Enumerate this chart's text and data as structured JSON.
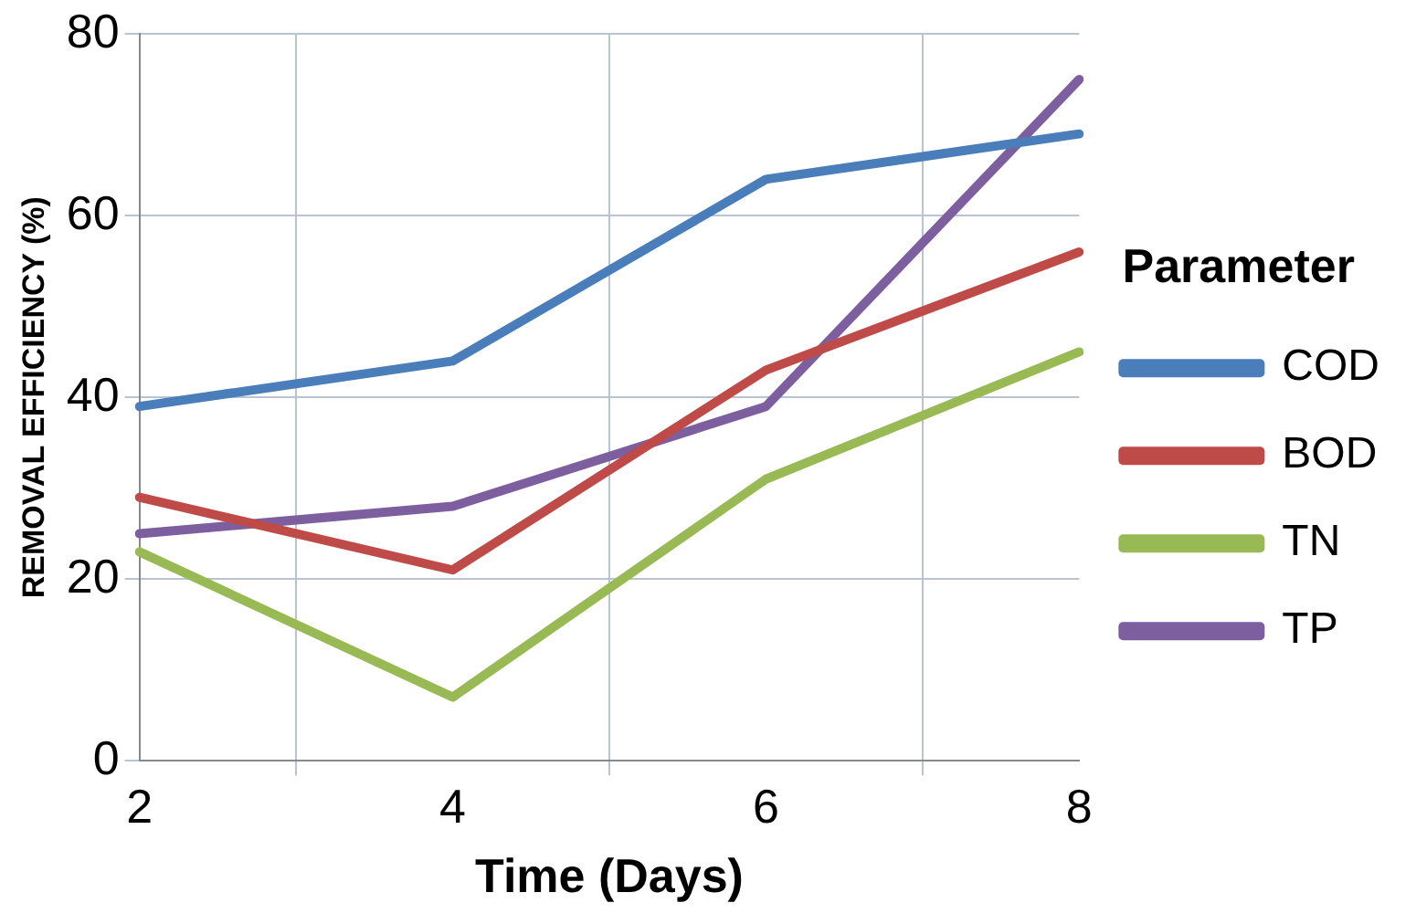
{
  "chart_data": {
    "type": "line",
    "xlabel": "Time (Days)",
    "ylabel": "REMOVAL EFFICIENCY (%)",
    "legend_title": "Parameter",
    "categories": [
      "2",
      "4",
      "6",
      "8"
    ],
    "series": [
      {
        "name": "COD",
        "color": "#4a7ebb",
        "values": [
          39,
          44,
          64,
          69
        ]
      },
      {
        "name": "BOD",
        "color": "#be4b48",
        "values": [
          29,
          21,
          43,
          56
        ]
      },
      {
        "name": "TN",
        "color": "#98b954",
        "values": [
          23,
          7,
          31,
          45
        ]
      },
      {
        "name": "TP",
        "color": "#7d5fa0",
        "values": [
          25,
          28,
          39,
          75
        ]
      }
    ],
    "ylim": [
      0,
      80
    ],
    "yticks": [
      0,
      20,
      40,
      60,
      80
    ],
    "grid": true,
    "legend": "right",
    "marker": "none",
    "line_style": "solid"
  }
}
